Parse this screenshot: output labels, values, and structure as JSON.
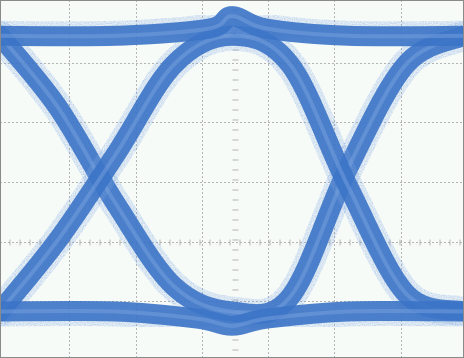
{
  "chart_data": {
    "type": "line",
    "title": "",
    "xlabel": "",
    "ylabel": "",
    "xlim": [
      0,
      2
    ],
    "ylim": [
      0,
      1
    ],
    "grid": true,
    "grid_divisions": {
      "x": 7,
      "y": 6
    },
    "series": [
      {
        "x": [
          0,
          0.25,
          0.5,
          0.75,
          1.0,
          1.25,
          1.5,
          1.75,
          2.0
        ],
        "values": [
          0.9,
          0.7,
          0.43,
          0.2,
          0.13,
          0.17,
          0.53,
          0.82,
          0.9
        ]
      },
      {
        "x": [
          0,
          0.25,
          0.5,
          0.75,
          1.0,
          1.25,
          1.5,
          1.75,
          2.0
        ],
        "values": [
          0.13,
          0.33,
          0.57,
          0.82,
          0.9,
          0.82,
          0.48,
          0.18,
          0.13
        ]
      },
      {
        "x": [
          0,
          0.5,
          0.9,
          1.0,
          1.15,
          1.5,
          2.0
        ],
        "values": [
          0.9,
          0.9,
          0.92,
          0.955,
          0.92,
          0.9,
          0.9
        ]
      },
      {
        "x": [
          0,
          0.5,
          0.85,
          1.0,
          1.15,
          1.5,
          2.0
        ],
        "values": [
          0.13,
          0.13,
          0.11,
          0.09,
          0.11,
          0.13,
          0.13
        ]
      }
    ]
  },
  "colors": {
    "trace": "#3b73c7",
    "trace_light": "#7ea6e0",
    "background": "#f7fbf8",
    "grid": "#b4b4b4",
    "frame": "#8a8a8a"
  }
}
